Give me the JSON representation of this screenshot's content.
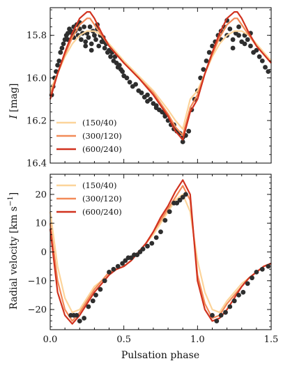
{
  "chart_data": [
    {
      "type": "line",
      "panel": "top",
      "xlabel": "",
      "ylabel": "I [mag]",
      "ylabel_parts": [
        "I",
        "[mag]"
      ],
      "xlim": [
        0.0,
        1.5
      ],
      "ylim": [
        16.4,
        15.67
      ],
      "y_inverted": true,
      "xticks": [
        0.0,
        0.5,
        1.0,
        1.5
      ],
      "show_xtick_labels": false,
      "yticks": [
        15.8,
        16.0,
        16.2,
        16.4
      ],
      "ytick_labels": [
        "15.8",
        "16.0",
        "16.2",
        "16.4"
      ],
      "grid": false,
      "legend_position": "lower-left",
      "series": [
        {
          "name": "(150/40)",
          "color": "#fcd49a",
          "x": [
            0.0,
            0.05,
            0.1,
            0.15,
            0.2,
            0.25,
            0.3,
            0.35,
            0.4,
            0.5,
            0.6,
            0.7,
            0.8,
            0.85,
            0.9,
            0.95,
            1.0,
            1.05,
            1.1,
            1.15,
            1.2,
            1.25,
            1.3,
            1.35,
            1.4,
            1.5
          ],
          "y": [
            16.06,
            15.98,
            15.9,
            15.84,
            15.8,
            15.78,
            15.78,
            15.8,
            15.84,
            15.92,
            15.99,
            16.06,
            16.15,
            16.2,
            16.24,
            16.1,
            16.06,
            15.98,
            15.9,
            15.84,
            15.8,
            15.78,
            15.78,
            15.8,
            15.84,
            15.92
          ]
        },
        {
          "name": "(300/120)",
          "color": "#f28a58",
          "x": [
            0.0,
            0.05,
            0.1,
            0.15,
            0.2,
            0.25,
            0.27,
            0.3,
            0.35,
            0.4,
            0.5,
            0.6,
            0.7,
            0.8,
            0.85,
            0.9,
            0.95,
            1.0,
            1.05,
            1.1,
            1.15,
            1.2,
            1.25,
            1.27,
            1.3,
            1.35,
            1.4,
            1.5
          ],
          "y": [
            16.08,
            15.98,
            15.89,
            15.81,
            15.75,
            15.72,
            15.72,
            15.75,
            15.8,
            15.85,
            15.93,
            16.0,
            16.07,
            16.17,
            16.23,
            16.27,
            16.14,
            16.08,
            15.98,
            15.89,
            15.81,
            15.75,
            15.72,
            15.72,
            15.75,
            15.8,
            15.85,
            15.93
          ]
        },
        {
          "name": "(600/240)",
          "color": "#d1321f",
          "x": [
            0.0,
            0.05,
            0.1,
            0.15,
            0.2,
            0.25,
            0.27,
            0.3,
            0.35,
            0.4,
            0.5,
            0.6,
            0.7,
            0.8,
            0.85,
            0.9,
            0.95,
            1.0,
            1.05,
            1.1,
            1.15,
            1.2,
            1.25,
            1.27,
            1.3,
            1.35,
            1.4,
            1.5
          ],
          "y": [
            16.1,
            15.98,
            15.88,
            15.79,
            15.72,
            15.69,
            15.69,
            15.72,
            15.79,
            15.85,
            15.93,
            16.0,
            16.08,
            16.18,
            16.25,
            16.29,
            16.16,
            16.1,
            15.98,
            15.88,
            15.79,
            15.72,
            15.69,
            15.69,
            15.72,
            15.79,
            15.85,
            15.93
          ]
        }
      ],
      "observations": {
        "color": "#2e2e2e",
        "x": [
          0.01,
          0.02,
          0.03,
          0.04,
          0.05,
          0.06,
          0.07,
          0.08,
          0.09,
          0.1,
          0.11,
          0.12,
          0.13,
          0.14,
          0.15,
          0.16,
          0.17,
          0.18,
          0.19,
          0.2,
          0.21,
          0.22,
          0.23,
          0.24,
          0.25,
          0.26,
          0.27,
          0.28,
          0.29,
          0.3,
          0.31,
          0.32,
          0.33,
          0.34,
          0.35,
          0.36,
          0.37,
          0.38,
          0.39,
          0.4,
          0.41,
          0.42,
          0.43,
          0.44,
          0.45,
          0.46,
          0.47,
          0.48,
          0.49,
          0.5,
          0.52,
          0.54,
          0.56,
          0.58,
          0.6,
          0.62,
          0.64,
          0.66,
          0.68,
          0.7,
          0.72,
          0.74,
          0.76,
          0.78,
          0.8,
          0.82,
          0.84,
          0.86,
          0.88,
          0.9,
          0.92,
          0.94,
          0.96,
          0.98,
          1.0,
          1.02,
          1.04,
          1.06,
          1.08,
          1.1,
          1.12,
          1.14,
          1.16,
          1.18,
          1.2,
          1.22,
          1.24,
          1.26,
          1.28,
          1.3,
          1.32,
          1.34,
          1.36,
          1.38,
          1.4,
          1.42,
          1.44,
          1.46,
          1.48,
          0.12,
          0.16,
          0.2,
          0.24,
          0.28,
          0.32,
          0.36,
          1.16,
          1.2,
          1.24,
          1.28,
          1.32,
          1.36,
          0.66,
          0.72,
          0.78,
          0.84,
          0.9
        ],
        "y": [
          16.08,
          16.04,
          16.0,
          15.97,
          15.94,
          15.92,
          15.88,
          15.86,
          15.84,
          15.82,
          15.8,
          15.79,
          15.77,
          15.78,
          15.79,
          15.76,
          15.78,
          15.75,
          15.8,
          15.77,
          15.82,
          15.79,
          15.76,
          15.83,
          15.79,
          15.81,
          15.76,
          15.84,
          15.78,
          15.8,
          15.82,
          15.77,
          15.85,
          15.8,
          15.83,
          15.81,
          15.86,
          15.84,
          15.88,
          15.87,
          15.9,
          15.88,
          15.92,
          15.9,
          15.93,
          15.95,
          15.94,
          15.96,
          15.97,
          15.99,
          16.0,
          16.02,
          16.04,
          16.03,
          16.06,
          16.07,
          16.09,
          16.08,
          16.1,
          16.12,
          16.13,
          16.15,
          16.16,
          16.18,
          16.2,
          16.22,
          16.24,
          16.25,
          16.26,
          16.28,
          16.27,
          16.25,
          16.15,
          16.1,
          16.06,
          16.0,
          15.96,
          15.92,
          15.88,
          15.85,
          15.83,
          15.8,
          15.78,
          15.76,
          15.8,
          15.77,
          15.82,
          15.79,
          15.76,
          15.83,
          15.8,
          15.82,
          15.85,
          15.88,
          15.87,
          15.9,
          15.92,
          15.95,
          15.97,
          15.82,
          15.81,
          15.74,
          15.85,
          15.87,
          15.75,
          15.83,
          15.82,
          15.73,
          15.86,
          15.8,
          15.84,
          15.79,
          16.11,
          16.14,
          16.17,
          16.22,
          16.3
        ]
      }
    },
    {
      "type": "line",
      "panel": "bottom",
      "xlabel": "Pulsation phase",
      "ylabel": "Radial velocity [km s⁻¹]",
      "ylabel_parts": [
        "Radial velocity [km s",
        "−1",
        "]"
      ],
      "xlim": [
        0.0,
        1.5
      ],
      "ylim": [
        -27,
        27
      ],
      "xticks": [
        0.0,
        0.5,
        1.0,
        1.5
      ],
      "xtick_labels": [
        "0.0",
        "0.5",
        "1.0",
        "1.5"
      ],
      "yticks": [
        -20,
        -10,
        0,
        10,
        20
      ],
      "ytick_labels": [
        "−20",
        "−10",
        "0",
        "10",
        "20"
      ],
      "grid": false,
      "legend_position": "upper-left",
      "series": [
        {
          "name": "(150/40)",
          "color": "#fcd49a",
          "x": [
            0.0,
            0.05,
            0.1,
            0.15,
            0.2,
            0.25,
            0.3,
            0.35,
            0.4,
            0.45,
            0.5,
            0.55,
            0.6,
            0.65,
            0.7,
            0.75,
            0.8,
            0.85,
            0.9,
            0.95,
            1.0,
            1.05,
            1.1,
            1.15,
            1.2,
            1.25,
            1.3,
            1.35,
            1.4,
            1.45,
            1.5
          ],
          "y": [
            14,
            -5,
            -16,
            -21,
            -20,
            -16,
            -12,
            -10,
            -7,
            -6,
            -5,
            -3,
            0,
            3,
            6,
            10,
            14,
            18,
            20,
            14,
            -3,
            -14,
            -20,
            -21,
            -17,
            -14,
            -11,
            -9,
            -7,
            -5,
            -4
          ]
        },
        {
          "name": "(300/120)",
          "color": "#f28a58",
          "x": [
            0.0,
            0.05,
            0.1,
            0.15,
            0.2,
            0.25,
            0.3,
            0.35,
            0.4,
            0.45,
            0.5,
            0.55,
            0.6,
            0.65,
            0.7,
            0.75,
            0.8,
            0.85,
            0.9,
            0.95,
            1.0,
            1.05,
            1.1,
            1.15,
            1.2,
            1.25,
            1.3,
            1.35,
            1.4,
            1.45,
            1.5
          ],
          "y": [
            10,
            -10,
            -20,
            -24,
            -21,
            -17,
            -13,
            -10,
            -7,
            -6,
            -5,
            -3,
            0,
            3,
            7,
            11,
            15,
            19,
            23,
            18,
            -8,
            -18,
            -23,
            -22,
            -18,
            -15,
            -12,
            -9,
            -7,
            -5,
            -4
          ]
        },
        {
          "name": "(600/240)",
          "color": "#d1321f",
          "x": [
            0.0,
            0.05,
            0.1,
            0.15,
            0.2,
            0.25,
            0.3,
            0.35,
            0.4,
            0.45,
            0.5,
            0.55,
            0.6,
            0.65,
            0.7,
            0.75,
            0.8,
            0.85,
            0.9,
            0.95,
            1.0,
            1.05,
            1.1,
            1.15,
            1.2,
            1.25,
            1.3,
            1.35,
            1.4,
            1.45,
            1.5
          ],
          "y": [
            8,
            -14,
            -22,
            -25,
            -22,
            -18,
            -14,
            -11,
            -8,
            -6,
            -5,
            -3,
            0,
            3,
            7,
            12,
            16,
            21,
            25,
            20,
            -10,
            -20,
            -24,
            -23,
            -20,
            -16,
            -12,
            -9,
            -7,
            -5,
            -4
          ]
        }
      ],
      "observations": {
        "color": "#2e2e2e",
        "x": [
          0.14,
          0.16,
          0.18,
          0.2,
          0.23,
          0.26,
          0.29,
          0.31,
          0.34,
          0.37,
          0.4,
          0.43,
          0.46,
          0.49,
          0.51,
          0.53,
          0.55,
          0.57,
          0.59,
          0.61,
          0.63,
          0.66,
          0.69,
          0.72,
          0.75,
          0.78,
          0.81,
          0.84,
          0.86,
          0.88,
          0.9,
          0.92,
          1.1,
          1.13,
          1.16,
          1.19,
          1.22,
          1.25,
          1.28,
          1.31,
          1.34,
          1.37,
          1.4,
          1.44,
          1.48
        ],
        "y": [
          -22,
          -22,
          -22,
          -24,
          -23,
          -19,
          -17,
          -15,
          -13,
          -10,
          -7,
          -6,
          -5,
          -4,
          -3,
          -2,
          -2,
          -1,
          -1,
          0,
          1,
          2,
          3,
          5,
          7,
          11,
          14,
          17,
          17,
          18,
          19,
          20,
          -22,
          -24,
          -22,
          -21,
          -19,
          -17,
          -15,
          -14,
          -11,
          -9,
          -7,
          -6,
          -5
        ]
      }
    }
  ]
}
